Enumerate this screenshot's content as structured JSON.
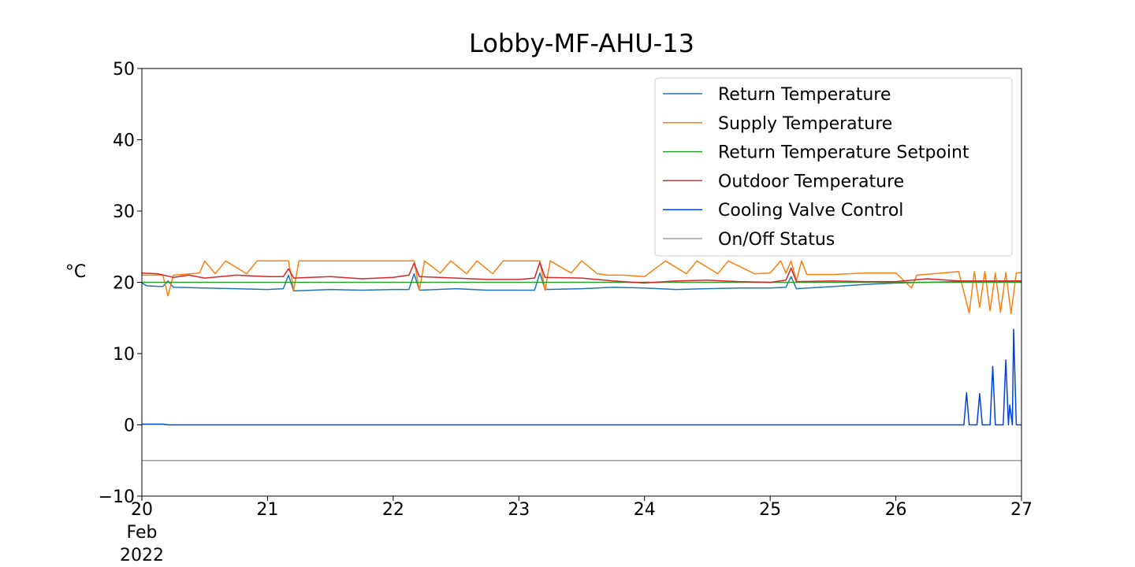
{
  "chart_data": {
    "type": "line",
    "title": "Lobby-MF-AHU-13",
    "xlabel": "",
    "ylabel": "°C",
    "xlim": [
      "2022-02-20",
      "2022-02-27"
    ],
    "ylim": [
      -10,
      50
    ],
    "x_ticks": [
      "2022-02-20",
      "2022-02-21",
      "2022-02-22",
      "2022-02-23",
      "2022-02-24",
      "2022-02-25",
      "2022-02-26",
      "2022-02-27"
    ],
    "x_tick_labels": [
      "20\nFeb\n2022",
      "21",
      "22",
      "23",
      "24",
      "25",
      "26",
      "27"
    ],
    "y_ticks": [
      -10,
      0,
      10,
      20,
      30,
      40,
      50
    ],
    "y_tick_labels": [
      "−10",
      "0",
      "10",
      "20",
      "30",
      "40",
      "50"
    ],
    "grid": false,
    "legend_position": "upper-right",
    "series": [
      {
        "name": "Return Temperature",
        "color": "#1f77b4",
        "points": [
          [
            "2022-02-20T00:00",
            19.9
          ],
          [
            "2022-02-20T01:00",
            19.5
          ],
          [
            "2022-02-20T04:00",
            19.4
          ],
          [
            "2022-02-20T05:00",
            20.2
          ],
          [
            "2022-02-20T06:00",
            19.3
          ],
          [
            "2022-02-20T12:00",
            19.2
          ],
          [
            "2022-02-20T18:00",
            19.1
          ],
          [
            "2022-02-21T00:00",
            19.0
          ],
          [
            "2022-02-21T03:00",
            19.1
          ],
          [
            "2022-02-21T04:00",
            21.0
          ],
          [
            "2022-02-21T05:00",
            18.8
          ],
          [
            "2022-02-21T12:00",
            19.0
          ],
          [
            "2022-02-21T18:00",
            18.9
          ],
          [
            "2022-02-22T00:00",
            19.0
          ],
          [
            "2022-02-22T03:00",
            19.0
          ],
          [
            "2022-02-22T04:00",
            21.2
          ],
          [
            "2022-02-22T05:00",
            18.9
          ],
          [
            "2022-02-22T12:00",
            19.1
          ],
          [
            "2022-02-22T18:00",
            18.9
          ],
          [
            "2022-02-23T00:00",
            18.9
          ],
          [
            "2022-02-23T03:00",
            18.9
          ],
          [
            "2022-02-23T04:00",
            21.3
          ],
          [
            "2022-02-23T05:00",
            19.0
          ],
          [
            "2022-02-23T12:00",
            19.1
          ],
          [
            "2022-02-23T18:00",
            19.3
          ],
          [
            "2022-02-24T00:00",
            19.2
          ],
          [
            "2022-02-24T06:00",
            19.0
          ],
          [
            "2022-02-24T12:00",
            19.1
          ],
          [
            "2022-02-24T18:00",
            19.2
          ],
          [
            "2022-02-25T00:00",
            19.2
          ],
          [
            "2022-02-25T03:00",
            19.3
          ],
          [
            "2022-02-25T04:00",
            20.8
          ],
          [
            "2022-02-25T05:00",
            19.1
          ],
          [
            "2022-02-25T12:00",
            19.4
          ],
          [
            "2022-02-25T18:00",
            19.7
          ],
          [
            "2022-02-26T00:00",
            19.9
          ],
          [
            "2022-02-26T06:00",
            20.0
          ],
          [
            "2022-02-26T12:00",
            20.1
          ],
          [
            "2022-02-26T18:00",
            20.1
          ],
          [
            "2022-02-27T00:00",
            20.1
          ]
        ]
      },
      {
        "name": "Supply Temperature",
        "color": "#ff7f0e",
        "points": [
          [
            "2022-02-20T00:00",
            21.0
          ],
          [
            "2022-02-20T04:00",
            21.0
          ],
          [
            "2022-02-20T05:00",
            18.1
          ],
          [
            "2022-02-20T06:00",
            21.0
          ],
          [
            "2022-02-20T11:00",
            21.3
          ],
          [
            "2022-02-20T12:00",
            23.0
          ],
          [
            "2022-02-20T14:00",
            21.2
          ],
          [
            "2022-02-20T16:00",
            23.0
          ],
          [
            "2022-02-20T20:00",
            21.2
          ],
          [
            "2022-02-20T22:00",
            23.0
          ],
          [
            "2022-02-21T04:00",
            23.0
          ],
          [
            "2022-02-21T05:00",
            18.9
          ],
          [
            "2022-02-21T06:00",
            23.0
          ],
          [
            "2022-02-22T04:00",
            23.0
          ],
          [
            "2022-02-22T05:00",
            18.9
          ],
          [
            "2022-02-22T06:00",
            23.0
          ],
          [
            "2022-02-22T09:00",
            21.3
          ],
          [
            "2022-02-22T11:00",
            23.0
          ],
          [
            "2022-02-22T14:00",
            21.2
          ],
          [
            "2022-02-22T16:00",
            23.0
          ],
          [
            "2022-02-22T19:00",
            21.2
          ],
          [
            "2022-02-22T21:00",
            23.0
          ],
          [
            "2022-02-23T04:00",
            23.0
          ],
          [
            "2022-02-23T05:00",
            18.9
          ],
          [
            "2022-02-23T06:00",
            23.0
          ],
          [
            "2022-02-23T10:00",
            21.3
          ],
          [
            "2022-02-23T12:00",
            23.0
          ],
          [
            "2022-02-23T15:00",
            21.2
          ],
          [
            "2022-02-23T17:00",
            21.0
          ],
          [
            "2022-02-23T20:00",
            21.0
          ],
          [
            "2022-02-24T00:00",
            20.8
          ],
          [
            "2022-02-24T04:00",
            23.0
          ],
          [
            "2022-02-24T08:00",
            21.2
          ],
          [
            "2022-02-24T10:00",
            23.0
          ],
          [
            "2022-02-24T14:00",
            21.2
          ],
          [
            "2022-02-24T16:00",
            23.0
          ],
          [
            "2022-02-24T21:00",
            21.2
          ],
          [
            "2022-02-25T00:00",
            21.3
          ],
          [
            "2022-02-25T02:00",
            23.0
          ],
          [
            "2022-02-25T03:00",
            21.3
          ],
          [
            "2022-02-25T04:00",
            23.0
          ],
          [
            "2022-02-25T05:00",
            20.2
          ],
          [
            "2022-02-25T06:00",
            23.0
          ],
          [
            "2022-02-25T07:00",
            21.1
          ],
          [
            "2022-02-25T12:00",
            21.1
          ],
          [
            "2022-02-25T18:00",
            21.3
          ],
          [
            "2022-02-26T00:00",
            21.3
          ],
          [
            "2022-02-26T03:00",
            19.2
          ],
          [
            "2022-02-26T04:00",
            21.0
          ],
          [
            "2022-02-26T12:00",
            21.5
          ],
          [
            "2022-02-26T14:00",
            15.7
          ],
          [
            "2022-02-26T15:00",
            21.5
          ],
          [
            "2022-02-26T16:00",
            16.5
          ],
          [
            "2022-02-26T17:00",
            21.5
          ],
          [
            "2022-02-26T18:00",
            16.0
          ],
          [
            "2022-02-26T19:00",
            21.3
          ],
          [
            "2022-02-26T20:00",
            15.8
          ],
          [
            "2022-02-26T21:00",
            21.4
          ],
          [
            "2022-02-26T22:00",
            15.6
          ],
          [
            "2022-02-26T23:00",
            21.3
          ],
          [
            "2022-02-27T00:00",
            21.4
          ]
        ]
      },
      {
        "name": "Return Temperature Setpoint",
        "color": "#2ca02c",
        "points": [
          [
            "2022-02-20T00:00",
            20.0
          ],
          [
            "2022-02-27T00:00",
            20.0
          ]
        ]
      },
      {
        "name": "Outdoor Temperature",
        "color": "#d62728",
        "points": [
          [
            "2022-02-20T00:00",
            21.3
          ],
          [
            "2022-02-20T03:00",
            21.2
          ],
          [
            "2022-02-20T06:00",
            20.7
          ],
          [
            "2022-02-20T09:00",
            21.0
          ],
          [
            "2022-02-20T12:00",
            20.6
          ],
          [
            "2022-02-20T18:00",
            21.0
          ],
          [
            "2022-02-21T00:00",
            20.8
          ],
          [
            "2022-02-21T03:00",
            20.8
          ],
          [
            "2022-02-21T04:00",
            21.9
          ],
          [
            "2022-02-21T05:00",
            20.6
          ],
          [
            "2022-02-21T12:00",
            20.8
          ],
          [
            "2022-02-21T18:00",
            20.5
          ],
          [
            "2022-02-22T00:00",
            20.7
          ],
          [
            "2022-02-22T03:00",
            21.0
          ],
          [
            "2022-02-22T04:00",
            22.7
          ],
          [
            "2022-02-22T05:00",
            20.8
          ],
          [
            "2022-02-22T12:00",
            20.6
          ],
          [
            "2022-02-22T18:00",
            20.4
          ],
          [
            "2022-02-23T00:00",
            20.4
          ],
          [
            "2022-02-23T03:00",
            20.6
          ],
          [
            "2022-02-23T04:00",
            22.8
          ],
          [
            "2022-02-23T05:00",
            20.7
          ],
          [
            "2022-02-23T12:00",
            20.6
          ],
          [
            "2022-02-23T18:00",
            20.2
          ],
          [
            "2022-02-24T00:00",
            19.9
          ],
          [
            "2022-02-24T06:00",
            20.2
          ],
          [
            "2022-02-24T12:00",
            20.3
          ],
          [
            "2022-02-24T18:00",
            20.1
          ],
          [
            "2022-02-25T00:00",
            20.0
          ],
          [
            "2022-02-25T03:00",
            20.3
          ],
          [
            "2022-02-25T04:00",
            22.0
          ],
          [
            "2022-02-25T05:00",
            20.1
          ],
          [
            "2022-02-25T12:00",
            20.2
          ],
          [
            "2022-02-25T18:00",
            20.1
          ],
          [
            "2022-02-26T00:00",
            20.1
          ],
          [
            "2022-02-26T06:00",
            20.5
          ],
          [
            "2022-02-26T12:00",
            20.2
          ],
          [
            "2022-02-26T18:00",
            20.2
          ],
          [
            "2022-02-27T00:00",
            20.2
          ]
        ]
      },
      {
        "name": "Cooling Valve Control",
        "color": "#0043e0",
        "points": [
          [
            "2022-02-20T00:00",
            0.1
          ],
          [
            "2022-02-20T04:00",
            0.1
          ],
          [
            "2022-02-20T05:00",
            0.0
          ],
          [
            "2022-02-26T13:00",
            0.0
          ],
          [
            "2022-02-26T13:30",
            4.5
          ],
          [
            "2022-02-26T14:00",
            0.0
          ],
          [
            "2022-02-26T15:30",
            0.0
          ],
          [
            "2022-02-26T16:00",
            4.4
          ],
          [
            "2022-02-26T16:30",
            0.0
          ],
          [
            "2022-02-26T18:00",
            0.0
          ],
          [
            "2022-02-26T18:30",
            8.2
          ],
          [
            "2022-02-26T19:00",
            0.0
          ],
          [
            "2022-02-26T20:30",
            0.0
          ],
          [
            "2022-02-26T21:00",
            9.1
          ],
          [
            "2022-02-26T21:30",
            0.0
          ],
          [
            "2022-02-26T21:45",
            2.8
          ],
          [
            "2022-02-26T22:15",
            0.0
          ],
          [
            "2022-02-26T22:30",
            13.4
          ],
          [
            "2022-02-26T23:00",
            0.0
          ],
          [
            "2022-02-27T00:00",
            0.0
          ]
        ]
      },
      {
        "name": "On/Off Status",
        "color": "#9e9e9e",
        "points": [
          [
            "2022-02-20T00:00",
            -5.0
          ],
          [
            "2022-02-27T00:00",
            -5.0
          ]
        ]
      }
    ]
  }
}
